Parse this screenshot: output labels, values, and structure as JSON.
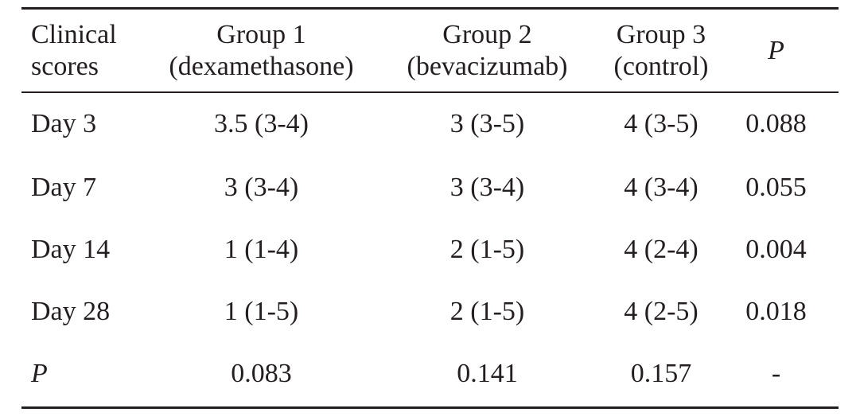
{
  "table": {
    "header": [
      {
        "lines": [
          "Clinical",
          "scores"
        ],
        "italic": false
      },
      {
        "lines": [
          "Group 1",
          "(dexamethasone)"
        ],
        "italic": false
      },
      {
        "lines": [
          "Group 2",
          "(bevacizumab)"
        ],
        "italic": false
      },
      {
        "lines": [
          "Group 3",
          "(control)"
        ],
        "italic": false
      },
      {
        "lines": [
          "P"
        ],
        "italic": true
      }
    ],
    "rows": [
      {
        "label": "Day 3",
        "label_italic": false,
        "cells": [
          "3.5 (3-4)",
          "3 (3-5)",
          "4 (3-5)",
          "0.088"
        ]
      },
      {
        "label": "Day 7",
        "label_italic": false,
        "cells": [
          "3 (3-4)",
          "3 (3-4)",
          "4 (3-4)",
          "0.055"
        ]
      },
      {
        "label": "Day 14",
        "label_italic": false,
        "cells": [
          "1 (1-4)",
          "2 (1-5)",
          "4 (2-4)",
          "0.004"
        ]
      },
      {
        "label": "Day 28",
        "label_italic": false,
        "cells": [
          "1 (1-5)",
          "2 (1-5)",
          "4 (2-5)",
          "0.018"
        ]
      },
      {
        "label": "P",
        "label_italic": true,
        "cells": [
          "0.083",
          "0.141",
          "0.157",
          "-"
        ]
      }
    ]
  }
}
